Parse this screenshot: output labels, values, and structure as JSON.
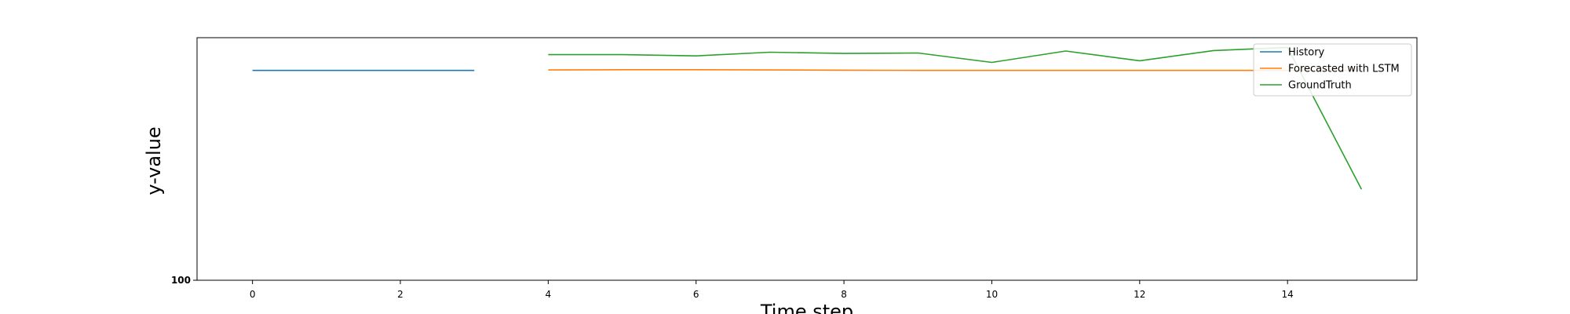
{
  "chart_data": {
    "type": "line",
    "title": "",
    "xlabel": "Time step",
    "ylabel": "y-value",
    "xlim": [
      -0.75,
      15.75
    ],
    "ylim": [
      0,
      1
    ],
    "x_ticks": [
      "0",
      "2",
      "4",
      "6",
      "8",
      "10",
      "12",
      "14"
    ],
    "y_tick_label": "100",
    "grid": false,
    "legend_position": "top-right",
    "series": [
      {
        "name": "History",
        "color": "#1f77b4",
        "x": [
          0,
          1,
          2,
          3
        ],
        "y": [
          0.865,
          0.865,
          0.865,
          0.865
        ]
      },
      {
        "name": "Forecasted with LSTM",
        "color": "#ff7f0e",
        "x": [
          4,
          5,
          6,
          7,
          8,
          9,
          10,
          11,
          12,
          13,
          14,
          15
        ],
        "y": [
          0.867,
          0.868,
          0.868,
          0.867,
          0.866,
          0.865,
          0.865,
          0.865,
          0.865,
          0.865,
          0.865,
          0.865
        ]
      },
      {
        "name": "GroundTruth",
        "color": "#2ca02c",
        "x": [
          4,
          5,
          6,
          7,
          8,
          9,
          10,
          11,
          12,
          13,
          14,
          15
        ],
        "y": [
          0.93,
          0.93,
          0.925,
          0.94,
          0.935,
          0.937,
          0.898,
          0.945,
          0.905,
          0.947,
          0.96,
          0.375
        ]
      }
    ]
  }
}
